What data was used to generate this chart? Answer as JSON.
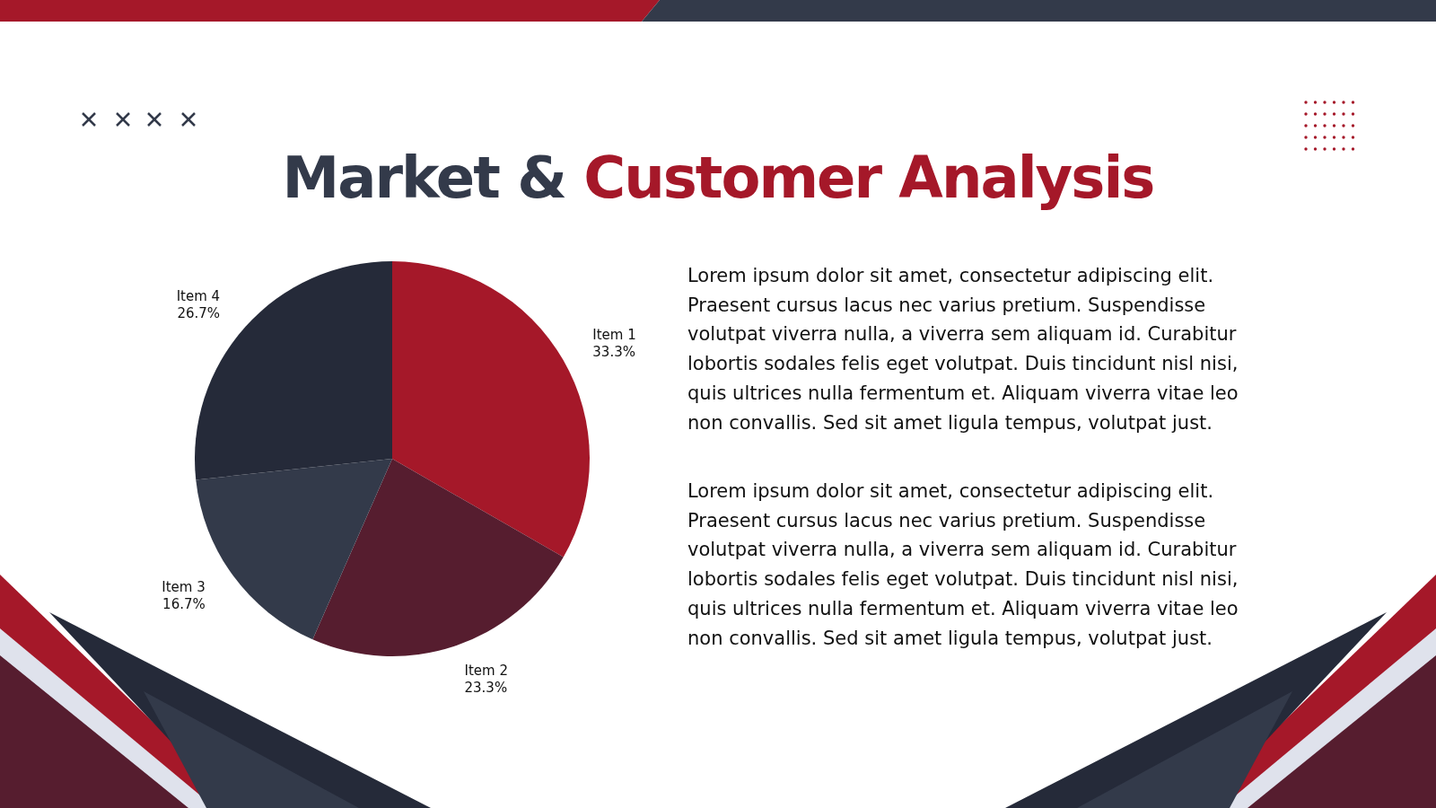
{
  "chart_data": {
    "type": "pie",
    "title": "Market & Customer Analysis",
    "categories": [
      "Item 1",
      "Item 2",
      "Item 3",
      "Item 4"
    ],
    "values": [
      33.3,
      23.3,
      16.7,
      26.7
    ],
    "colors": [
      "#a51829",
      "#561d2f",
      "#333a4a",
      "#252a39"
    ],
    "value_labels": [
      "33.3%",
      "23.3%",
      "16.7%",
      "26.7%"
    ],
    "annotations": [
      "Lorem ipsum dolor sit amet, consectetur adipiscing elit. Praesent cursus lacus nec varius pretium. Suspendisse volutpat viverra nulla, a viverra sem aliquam id. Curabitur lobortis sodales felis eget volutpat. Duis tincidunt nisl nisi, quis ultrices nulla fermentum et. Aliquam viverra vitae leo non convallis. Sed sit amet ligula tempus, volutpat just.",
      "Lorem ipsum dolor sit amet, consectetur adipiscing elit. Praesent cursus lacus nec varius pretium. Suspendisse volutpat viverra nulla, a viverra sem aliquam id. Curabitur lobortis sodales felis eget volutpat. Duis tincidunt nisl nisi, quis ultrices nulla fermentum et. Aliquam viverra vitae leo non convallis. Sed sit amet ligula tempus, volutpat just."
    ]
  }
}
